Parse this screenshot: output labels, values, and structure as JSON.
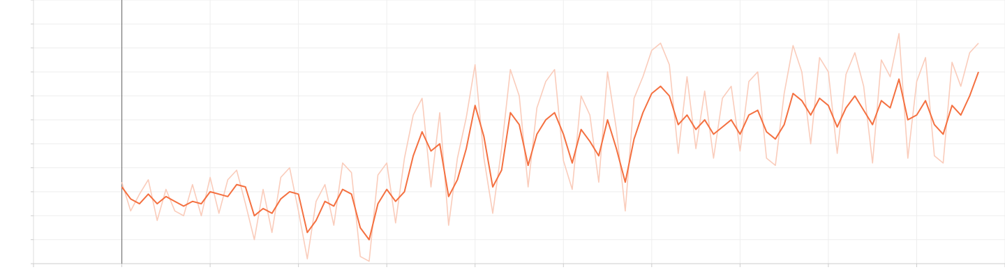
{
  "chart_data": {
    "type": "line",
    "title": "",
    "xlabel": "",
    "ylabel": "",
    "grid": true,
    "legend": "none",
    "xlim": [
      -100,
      1000
    ],
    "ylim": [
      0,
      11
    ],
    "series": [
      {
        "color": "#f47040",
        "raw_color": "#f9c7b4",
        "x": [
          0,
          10,
          20,
          30,
          40,
          50,
          60,
          70,
          80,
          90,
          100,
          110,
          120,
          130,
          140,
          150,
          160,
          170,
          180,
          190,
          200,
          210,
          220,
          230,
          240,
          250,
          260,
          270,
          280,
          290,
          300,
          310,
          320,
          330,
          340,
          350,
          360,
          370,
          380,
          390,
          400,
          410,
          420,
          430,
          440,
          450,
          460,
          470,
          480,
          490,
          500,
          510,
          520,
          530,
          540,
          550,
          560,
          570,
          580,
          590,
          600,
          610,
          620,
          630,
          640,
          650,
          660,
          670,
          680,
          690,
          700,
          710,
          720,
          730,
          740,
          750,
          760,
          770,
          780,
          790,
          800,
          810,
          820,
          830,
          840,
          850,
          860,
          870,
          880,
          890,
          900,
          910,
          920,
          930,
          940,
          950,
          960,
          970
        ],
        "smoothed": [
          3.2,
          2.7,
          2.5,
          2.9,
          2.5,
          2.8,
          2.6,
          2.4,
          2.6,
          2.5,
          3.0,
          2.9,
          2.8,
          3.3,
          3.2,
          2.0,
          2.3,
          2.1,
          2.7,
          3.0,
          2.9,
          1.3,
          1.8,
          2.6,
          2.4,
          3.1,
          2.9,
          1.5,
          1.0,
          2.5,
          3.1,
          2.6,
          3.0,
          4.5,
          5.5,
          4.7,
          5.0,
          2.8,
          3.5,
          4.8,
          6.6,
          5.3,
          3.2,
          3.9,
          6.3,
          5.8,
          4.1,
          5.4,
          6.0,
          6.3,
          5.4,
          4.2,
          5.6,
          5.1,
          4.5,
          6.0,
          4.8,
          3.4,
          5.2,
          6.3,
          7.1,
          7.4,
          7.0,
          5.8,
          6.2,
          5.6,
          6.0,
          5.4,
          5.7,
          6.0,
          5.4,
          6.2,
          6.4,
          5.5,
          5.2,
          5.8,
          7.1,
          6.8,
          6.2,
          6.9,
          6.6,
          5.7,
          6.5,
          7.0,
          6.4,
          5.8,
          6.8,
          6.5,
          7.7,
          6.0,
          6.2,
          6.8,
          5.8,
          5.4,
          6.6,
          6.2,
          7.0,
          8.0
        ],
        "raw": [
          3.4,
          2.2,
          2.9,
          3.5,
          1.8,
          3.1,
          2.2,
          2.0,
          3.3,
          2.0,
          3.6,
          2.1,
          3.5,
          3.9,
          2.5,
          1.0,
          3.1,
          1.3,
          3.6,
          4.0,
          2.2,
          0.2,
          2.6,
          3.3,
          1.6,
          4.2,
          3.8,
          0.3,
          0.1,
          3.7,
          4.2,
          1.7,
          4.4,
          6.2,
          6.9,
          3.2,
          6.3,
          1.6,
          4.4,
          6.1,
          8.3,
          4.4,
          2.1,
          4.8,
          8.1,
          7.0,
          3.2,
          6.5,
          7.6,
          8.1,
          4.3,
          3.1,
          7.0,
          6.2,
          3.4,
          8.0,
          5.6,
          2.2,
          6.9,
          7.8,
          8.9,
          9.2,
          8.3,
          4.6,
          7.8,
          4.8,
          7.2,
          4.4,
          6.9,
          7.4,
          4.7,
          7.6,
          8.0,
          4.4,
          4.1,
          7.1,
          9.1,
          8.0,
          5.0,
          8.6,
          8.0,
          4.6,
          7.9,
          8.8,
          7.4,
          4.2,
          8.5,
          7.8,
          9.6,
          4.4,
          7.6,
          8.6,
          4.5,
          4.2,
          8.4,
          7.4,
          8.8,
          9.2
        ]
      }
    ]
  }
}
